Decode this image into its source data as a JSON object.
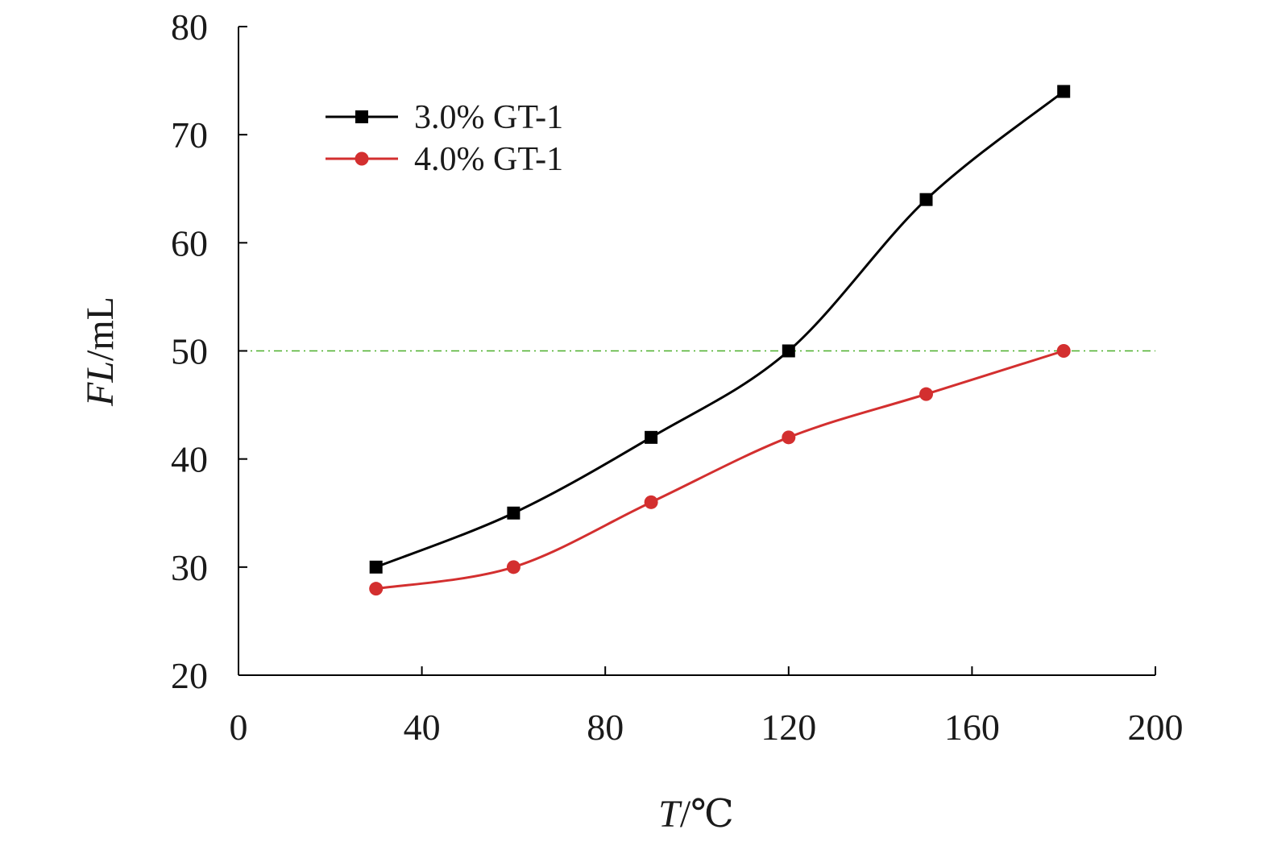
{
  "chart_data": {
    "type": "line",
    "title": "",
    "xlabel_italic": "T",
    "xlabel_rest": "/℃",
    "ylabel_italic": "FL",
    "ylabel_rest": "/mL",
    "xlim": [
      0,
      200
    ],
    "ylim": [
      20,
      80
    ],
    "xticks": [
      0,
      40,
      80,
      120,
      160,
      200
    ],
    "yticks": [
      20,
      30,
      40,
      50,
      60,
      70,
      80
    ],
    "grid": false,
    "legend_position": "top-left",
    "reference_line": {
      "y": 50,
      "color": "#4caf2a",
      "style": "dash-dot"
    },
    "series": [
      {
        "name": "3.0% GT-1",
        "color": "#000000",
        "marker": "square",
        "x": [
          30,
          60,
          90,
          120,
          150,
          180
        ],
        "y": [
          30,
          35,
          42,
          50,
          64,
          74
        ]
      },
      {
        "name": "4.0% GT-1",
        "color": "#d32f2f",
        "marker": "circle",
        "x": [
          30,
          60,
          90,
          120,
          150,
          180
        ],
        "y": [
          28,
          30,
          36,
          42,
          46,
          50
        ]
      }
    ]
  }
}
